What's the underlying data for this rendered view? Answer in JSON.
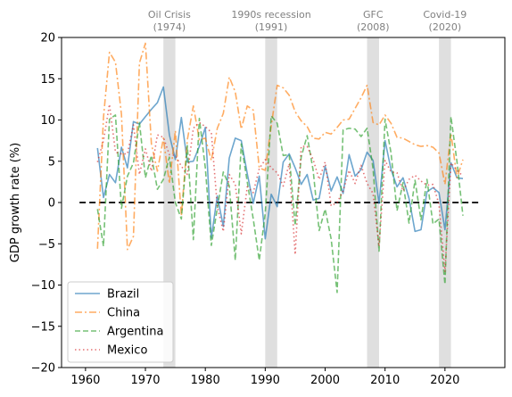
{
  "chart_data": {
    "type": "line",
    "ylabel": "GDP growth rate (%)",
    "xlabel": "",
    "xlim": [
      1956,
      2030
    ],
    "ylim": [
      -20,
      20
    ],
    "xticks": [
      1960,
      1970,
      1980,
      1990,
      2000,
      2010,
      2020
    ],
    "yticks": [
      -20,
      -15,
      -10,
      -5,
      0,
      5,
      10,
      15,
      20
    ],
    "grid": false,
    "legend_position": "lower-left",
    "reference_line": {
      "y": 0,
      "style": "dashed",
      "color": "#000000"
    },
    "events": [
      {
        "line1": "Oil Crisis",
        "line2": "(1974)",
        "start": 1973,
        "end": 1975
      },
      {
        "line1": "1990s recession",
        "line2": "(1991)",
        "start": 1990,
        "end": 1992
      },
      {
        "line1": "GFC",
        "line2": "(2008)",
        "start": 2007,
        "end": 2009
      },
      {
        "line1": "Covid-19",
        "line2": "(2020)",
        "start": 2019,
        "end": 2021
      }
    ],
    "x": [
      1962,
      1963,
      1964,
      1965,
      1966,
      1967,
      1968,
      1969,
      1970,
      1971,
      1972,
      1973,
      1974,
      1975,
      1976,
      1977,
      1978,
      1979,
      1980,
      1981,
      1982,
      1983,
      1984,
      1985,
      1986,
      1987,
      1988,
      1989,
      1990,
      1991,
      1992,
      1993,
      1994,
      1995,
      1996,
      1997,
      1998,
      1999,
      2000,
      2001,
      2002,
      2003,
      2004,
      2005,
      2006,
      2007,
      2008,
      2009,
      2010,
      2011,
      2012,
      2013,
      2014,
      2015,
      2016,
      2017,
      2018,
      2019,
      2020,
      2021,
      2022,
      2023
    ],
    "series": [
      {
        "name": "Brazil",
        "color": "#1f77b4",
        "dash": "solid",
        "values": [
          6.6,
          0.6,
          3.4,
          2.4,
          6.7,
          4.2,
          9.8,
          9.5,
          10.4,
          11.3,
          12.1,
          14.0,
          8.2,
          5.2,
          10.3,
          4.9,
          5.0,
          6.8,
          9.1,
          -4.3,
          0.8,
          -2.9,
          5.4,
          7.8,
          7.5,
          3.5,
          -0.1,
          3.2,
          -4.4,
          1.0,
          -0.5,
          4.9,
          5.9,
          4.2,
          2.2,
          3.4,
          0.3,
          0.5,
          4.4,
          1.4,
          3.1,
          1.1,
          5.8,
          3.2,
          4.0,
          6.1,
          5.1,
          -0.1,
          7.5,
          4.0,
          1.9,
          3.0,
          0.5,
          -3.5,
          -3.3,
          1.3,
          1.8,
          1.2,
          -3.3,
          4.8,
          3.0,
          2.9
        ]
      },
      {
        "name": "China",
        "color": "#ff7f0e",
        "dash": "dashdot",
        "values": [
          -5.6,
          10.3,
          18.2,
          17.0,
          10.7,
          -5.7,
          -4.1,
          16.9,
          19.3,
          7.1,
          3.8,
          7.8,
          2.3,
          8.7,
          -1.6,
          7.6,
          11.7,
          7.6,
          7.8,
          5.1,
          9.0,
          10.8,
          15.2,
          13.4,
          8.9,
          11.7,
          11.2,
          4.2,
          3.9,
          9.3,
          14.2,
          13.9,
          13.0,
          11.0,
          9.9,
          9.2,
          7.8,
          7.7,
          8.5,
          8.3,
          9.1,
          10.0,
          10.1,
          11.4,
          12.7,
          14.2,
          9.7,
          9.4,
          10.6,
          9.6,
          7.9,
          7.8,
          7.4,
          7.0,
          6.8,
          6.9,
          6.7,
          6.0,
          2.2,
          8.4,
          3.0,
          5.2
        ]
      },
      {
        "name": "Argentina",
        "color": "#2ca02c",
        "dash": "dashed",
        "values": [
          -0.8,
          -5.3,
          10.1,
          10.6,
          -0.7,
          3.2,
          4.8,
          9.7,
          3.0,
          5.7,
          1.6,
          2.8,
          5.5,
          0.0,
          -2.0,
          6.9,
          -4.5,
          10.2,
          4.2,
          -5.2,
          -0.7,
          3.7,
          2.0,
          -7.0,
          7.1,
          2.5,
          -2.0,
          -7.0,
          -1.3,
          10.5,
          9.6,
          5.7,
          5.8,
          -2.8,
          5.5,
          8.1,
          3.9,
          -3.4,
          -0.8,
          -4.4,
          -10.9,
          8.8,
          9.0,
          8.9,
          8.0,
          9.0,
          4.1,
          -5.9,
          10.1,
          6.0,
          -1.0,
          2.4,
          -2.5,
          2.7,
          -2.1,
          2.8,
          -2.6,
          -2.0,
          -9.9,
          10.4,
          5.0,
          -1.6
        ]
      },
      {
        "name": "Mexico",
        "color": "#d62728",
        "dash": "dotted",
        "values": [
          4.9,
          7.5,
          11.9,
          6.1,
          5.9,
          5.9,
          9.4,
          3.4,
          6.5,
          3.8,
          8.2,
          7.9,
          5.8,
          5.7,
          4.4,
          3.4,
          9.0,
          9.7,
          9.2,
          8.5,
          -0.5,
          -3.5,
          3.4,
          2.2,
          -3.8,
          1.9,
          1.2,
          4.1,
          5.2,
          4.2,
          3.6,
          2.0,
          4.7,
          -6.3,
          6.8,
          6.8,
          5.2,
          2.8,
          4.9,
          -0.4,
          0.0,
          1.4,
          3.9,
          2.3,
          4.5,
          2.3,
          1.1,
          -5.3,
          5.1,
          3.7,
          3.6,
          1.4,
          2.8,
          3.3,
          2.6,
          2.1,
          2.2,
          -0.2,
          -8.4,
          4.8,
          3.9,
          3.2
        ]
      }
    ]
  }
}
